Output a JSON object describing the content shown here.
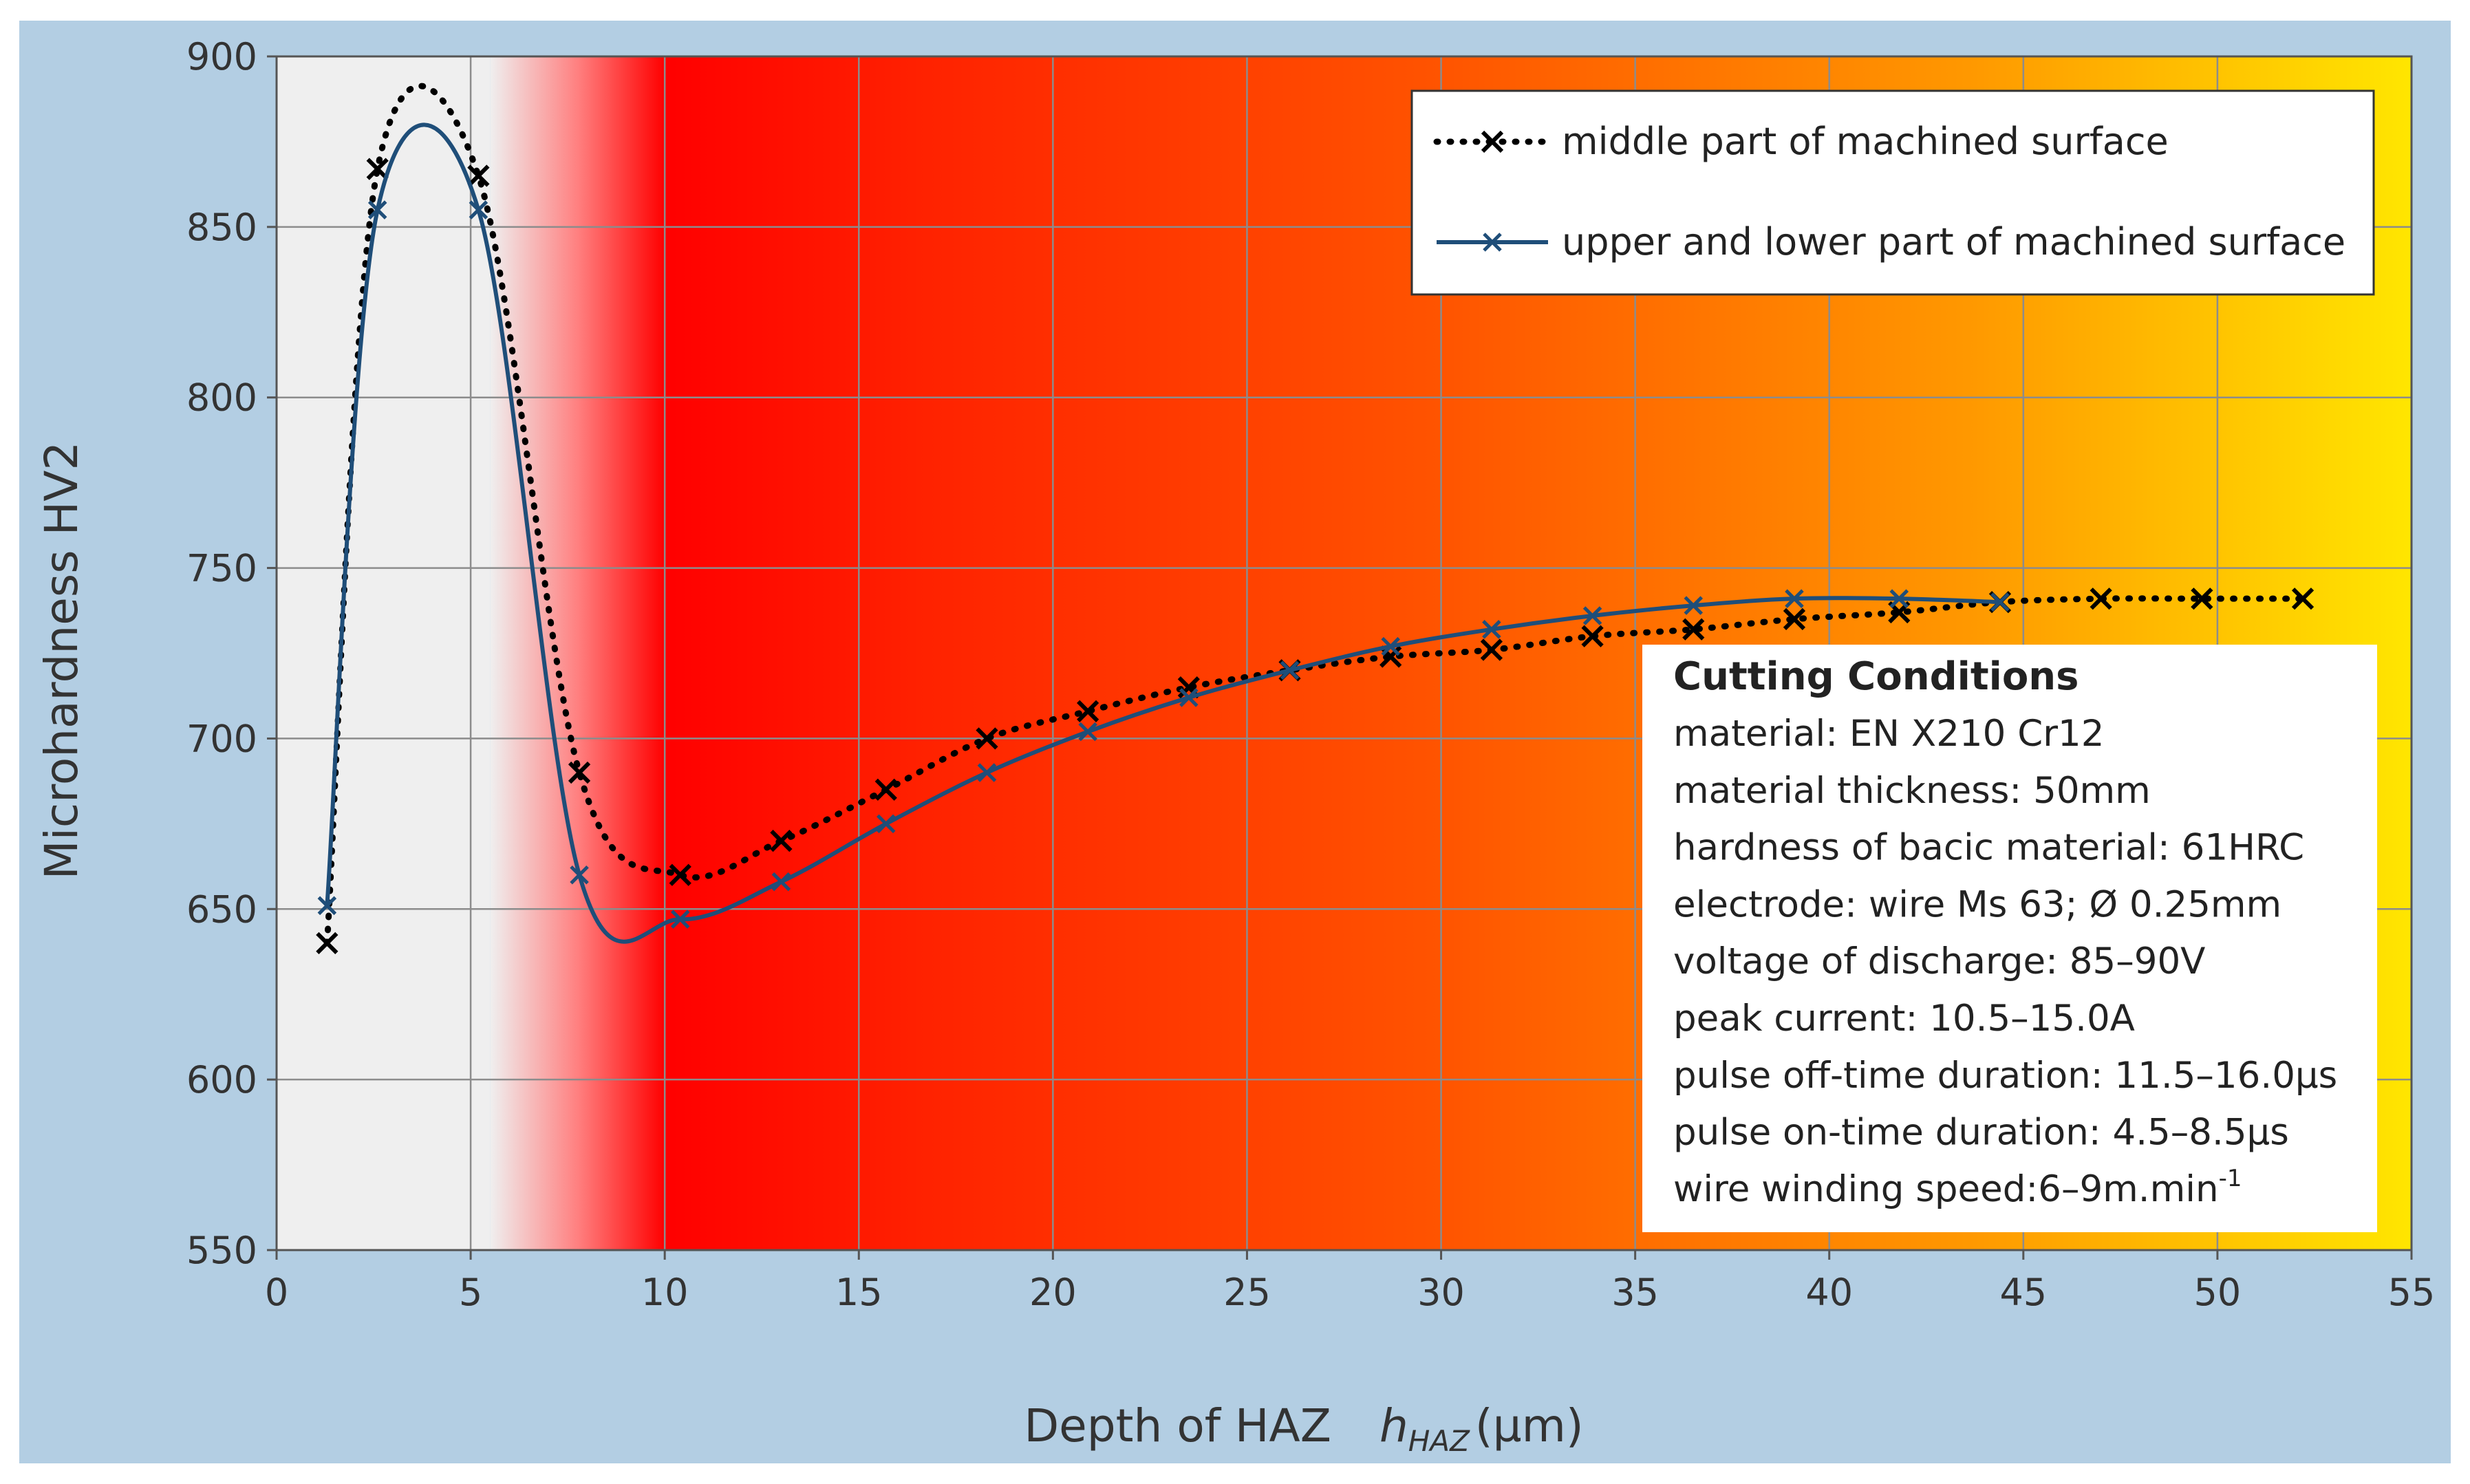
{
  "chart_data": {
    "type": "line",
    "title": "",
    "xlabel": "Depth of HAZ",
    "xlabel_symbol": "h",
    "xlabel_subscript": "HAZ",
    "xlabel_unit": "(µm)",
    "ylabel": "Microhardness  HV2",
    "xlim": [
      0,
      55
    ],
    "ylim": [
      550,
      900
    ],
    "xticks": [
      "0",
      "5",
      "10",
      "15",
      "20",
      "25",
      "30",
      "35",
      "40",
      "45",
      "50",
      "55"
    ],
    "yticks": [
      "550",
      "600",
      "650",
      "700",
      "750",
      "800",
      "850",
      "900"
    ],
    "grid": true,
    "legend_position": "top-right",
    "background_zones": [
      {
        "from": 0,
        "to": 5.5,
        "color": "#efefef"
      },
      {
        "from": 5.5,
        "to": 10,
        "color": "gradient-to-red"
      },
      {
        "from": 10,
        "to": 55,
        "color": "gradient-red-to-yellow"
      }
    ],
    "series": [
      {
        "name": "middle part of machined surface",
        "style": "dotted",
        "marker": "x",
        "color": "#000000",
        "x": [
          1.3,
          2.6,
          5.2,
          7.8,
          10.4,
          13.0,
          15.7,
          18.3,
          20.9,
          23.5,
          26.1,
          28.7,
          31.3,
          33.9,
          36.5,
          39.1,
          41.8,
          44.4,
          47.0,
          49.6,
          52.2
        ],
        "y": [
          640,
          867,
          865,
          690,
          660,
          670,
          685,
          700,
          708,
          715,
          720,
          724,
          726,
          730,
          732,
          735,
          737,
          740,
          741,
          741,
          741
        ]
      },
      {
        "name": "upper and lower part of machined surface",
        "style": "solid",
        "marker": "x",
        "color": "#1f4e79",
        "x": [
          1.3,
          2.6,
          5.2,
          7.8,
          10.4,
          13.0,
          15.7,
          18.3,
          20.9,
          23.5,
          26.1,
          28.7,
          31.3,
          33.9,
          36.5,
          39.1,
          41.8,
          44.4
        ],
        "y": [
          651,
          855,
          855,
          660,
          647,
          658,
          675,
          690,
          702,
          712,
          720,
          727,
          732,
          736,
          739,
          741,
          741,
          740
        ]
      }
    ]
  },
  "conditions": {
    "title": "Cutting Conditions",
    "lines": [
      "material: EN X210 Cr12",
      "material thickness: 50mm",
      "hardness of bacic material:  61HRC",
      "electrode: wire Ms 63; Ø 0.25mm",
      "voltage of discharge:  85–90V",
      "peak current: 10.5–15.0A",
      "pulse off-time duration: 11.5–16.0µs",
      "pulse on-time duration: 4.5–8.5µs"
    ],
    "last_line_base": "wire winding speed:6–9m.min",
    "last_line_sup": "-1"
  },
  "colors": {
    "frame": "#b3cee3",
    "grid": "#8c8c8c",
    "series_dotted": "#000000",
    "series_solid": "#1f4e79"
  }
}
